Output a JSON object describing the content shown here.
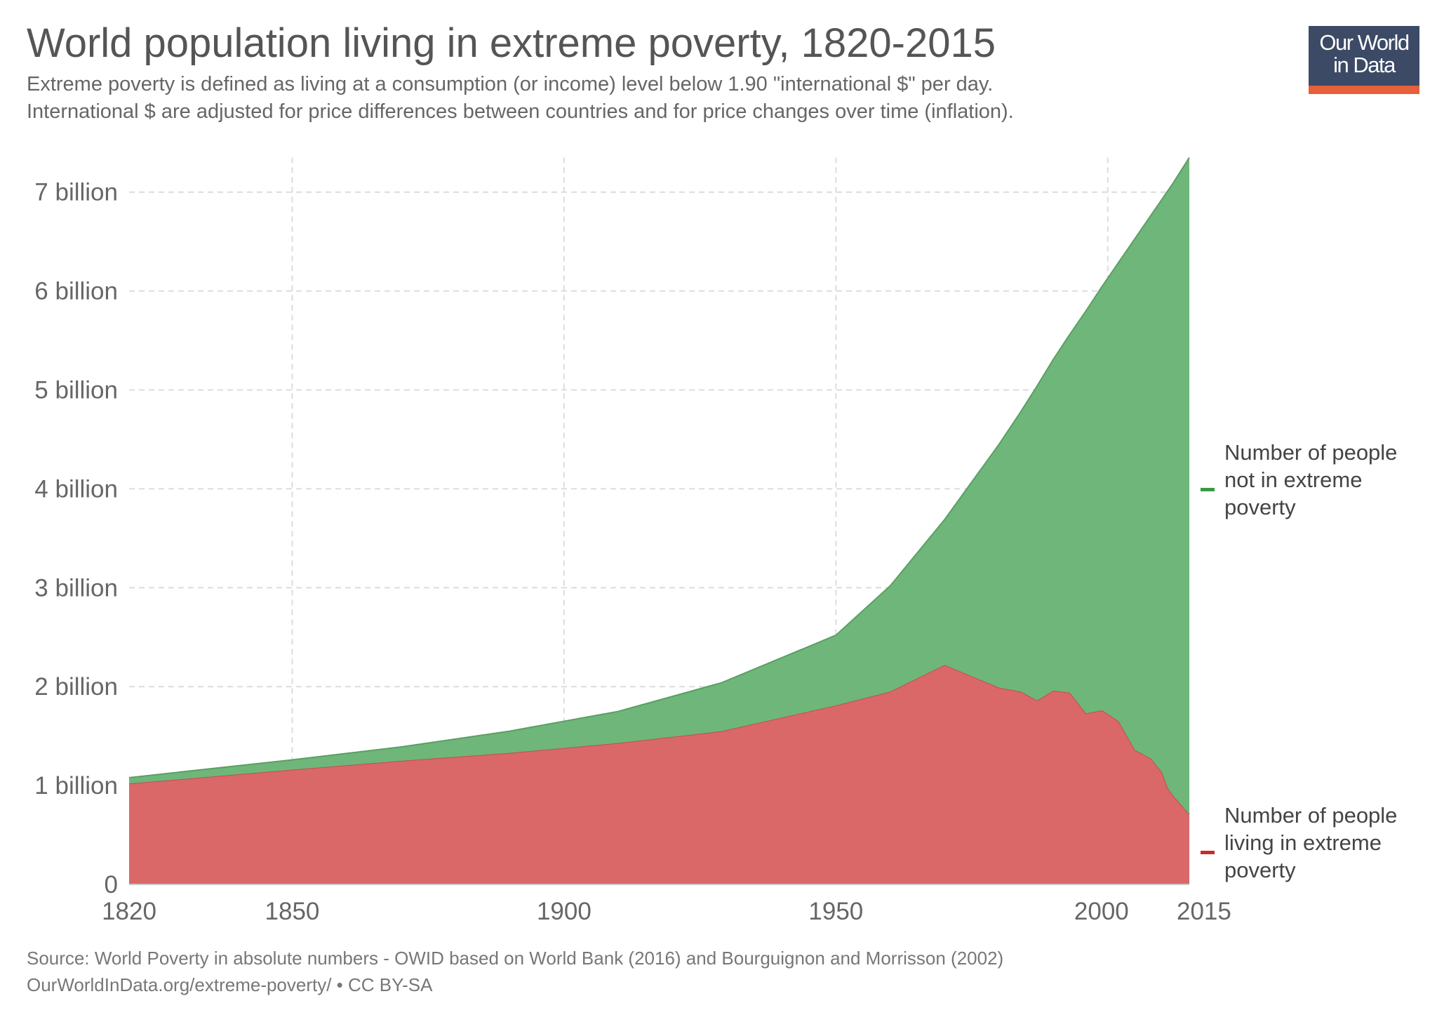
{
  "title": "World population living in extreme poverty, 1820-2015",
  "subtitle_lines": [
    "Extreme poverty is defined as living at a consumption (or income) level below 1.90 \"international $\" per day.",
    "International $ are adjusted for price differences between countries and for price changes over time (inflation)."
  ],
  "logo": {
    "line1": "Our World",
    "line2": "in Data",
    "bg_color": "#3c4a66",
    "accent_color": "#e5603b"
  },
  "source": {
    "line1": "Source: World Poverty in absolute numbers - OWID based on World Bank (2016) and Bourguignon and Morrisson (2002)",
    "line2": "OurWorldInData.org/extreme-poverty/ • CC BY-SA"
  },
  "chart_data": {
    "type": "area",
    "stacked": true,
    "title": "World population living in extreme poverty, 1820-2015",
    "xlabel": "",
    "ylabel": "",
    "xlim": [
      1820,
      2015
    ],
    "ylim": [
      0,
      7.35
    ],
    "grid": true,
    "legend_placement": "right",
    "x_ticks": [
      1820,
      1850,
      1900,
      1950,
      2000,
      2015
    ],
    "y_ticks": [
      {
        "value": 0,
        "label": "0"
      },
      {
        "value": 1,
        "label": "1 billion"
      },
      {
        "value": 2,
        "label": "2 billion"
      },
      {
        "value": 3,
        "label": "3 billion"
      },
      {
        "value": 4,
        "label": "4 billion"
      },
      {
        "value": 5,
        "label": "5 billion"
      },
      {
        "value": 6,
        "label": "6 billion"
      },
      {
        "value": 7,
        "label": "7 billion"
      }
    ],
    "x": [
      1820,
      1850,
      1870,
      1890,
      1910,
      1929,
      1950,
      1960,
      1970,
      1980,
      1984,
      1987,
      1990,
      1993,
      1996,
      1999,
      2002,
      2005,
      2008,
      2010,
      2011,
      2012,
      2015
    ],
    "series": [
      {
        "name": "Number of people living in extreme poverty",
        "legend_lines": [
          "Number of people",
          "living in extreme",
          "poverty"
        ],
        "fill": "#da6868",
        "stroke": "#c24f4f",
        "legend_color": "#cc2b2b",
        "values": [
          1.02,
          1.16,
          1.25,
          1.33,
          1.43,
          1.55,
          1.81,
          1.95,
          2.22,
          1.99,
          1.95,
          1.86,
          1.96,
          1.94,
          1.73,
          1.76,
          1.65,
          1.36,
          1.27,
          1.13,
          0.98,
          0.9,
          0.71
        ]
      },
      {
        "name": "Number of people not in extreme poverty",
        "legend_lines": [
          "Number of people",
          "not in extreme",
          "poverty"
        ],
        "fill": "#6fb67a",
        "stroke": "#5a9f63",
        "legend_color": "#3a9a45",
        "values": [
          0.06,
          0.1,
          0.14,
          0.22,
          0.32,
          0.49,
          0.71,
          1.07,
          1.47,
          2.46,
          2.83,
          3.18,
          3.35,
          3.62,
          4.07,
          4.29,
          4.64,
          5.17,
          5.5,
          5.8,
          6.03,
          6.19,
          6.64
        ]
      }
    ]
  }
}
